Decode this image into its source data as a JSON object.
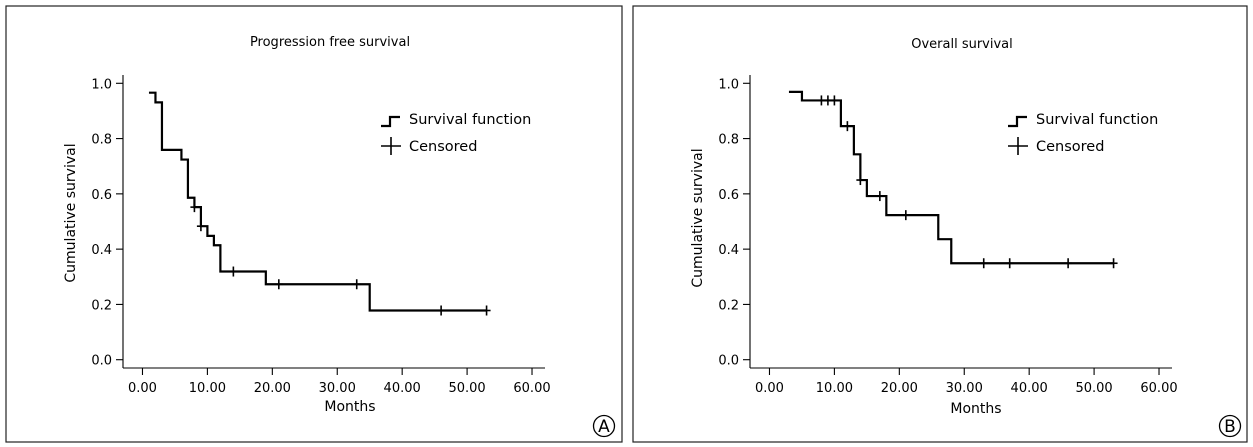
{
  "chart_data": [
    {
      "type": "line",
      "panel": "A",
      "title": "Progression free survival",
      "xlabel": "Months",
      "ylabel": "Cumulative survival",
      "xlim": [
        -3,
        62
      ],
      "ylim": [
        -0.03,
        1.03
      ],
      "xticks": [
        "0.00",
        "10.00",
        "20.00",
        "30.00",
        "40.00",
        "50.00",
        "60.00"
      ],
      "xtick_values": [
        0,
        10,
        20,
        30,
        40,
        50,
        60
      ],
      "yticks": [
        "0.0",
        "0.2",
        "0.4",
        "0.6",
        "0.8",
        "1.0"
      ],
      "ytick_values": [
        0,
        0.2,
        0.4,
        0.6,
        0.8,
        1.0
      ],
      "legend": [
        "Survival function",
        "Censored"
      ],
      "legend_position": "top-right",
      "series": [
        {
          "name": "Survival function",
          "start": [
            1,
            0.966
          ],
          "steps": [
            {
              "x": 2,
              "y": 0.931
            },
            {
              "x": 3,
              "y": 0.759
            },
            {
              "x": 6,
              "y": 0.724
            },
            {
              "x": 7,
              "y": 0.586
            },
            {
              "x": 8,
              "y": 0.552
            },
            {
              "x": 9,
              "y": 0.483
            },
            {
              "x": 10,
              "y": 0.448
            },
            {
              "x": 11,
              "y": 0.414
            },
            {
              "x": 12,
              "y": 0.319
            },
            {
              "x": 19,
              "y": 0.273
            },
            {
              "x": 35,
              "y": 0.178
            }
          ],
          "end_x": 53
        }
      ],
      "censored": [
        {
          "x": 8,
          "y": 0.552
        },
        {
          "x": 9,
          "y": 0.483
        },
        {
          "x": 14,
          "y": 0.319
        },
        {
          "x": 21,
          "y": 0.273
        },
        {
          "x": 33,
          "y": 0.273
        },
        {
          "x": 46,
          "y": 0.178
        },
        {
          "x": 53,
          "y": 0.178
        }
      ]
    },
    {
      "type": "line",
      "panel": "B",
      "title": "Overall survival",
      "xlabel": "Months",
      "ylabel": "Cumulative survival",
      "xlim": [
        -3,
        62
      ],
      "ylim": [
        -0.03,
        1.03
      ],
      "xticks": [
        "0.00",
        "10.00",
        "20.00",
        "30.00",
        "40.00",
        "50.00",
        "60.00"
      ],
      "xtick_values": [
        0,
        10,
        20,
        30,
        40,
        50,
        60
      ],
      "yticks": [
        "0.0",
        "0.2",
        "0.4",
        "0.6",
        "0.8",
        "1.0"
      ],
      "ytick_values": [
        0,
        0.2,
        0.4,
        0.6,
        0.8,
        1.0
      ],
      "legend": [
        "Survival function",
        "Censored"
      ],
      "legend_position": "top-right",
      "series": [
        {
          "name": "Survival function",
          "start": [
            3,
            0.969
          ],
          "steps": [
            {
              "x": 5,
              "y": 0.938
            },
            {
              "x": 11,
              "y": 0.845
            },
            {
              "x": 13,
              "y": 0.743
            },
            {
              "x": 14,
              "y": 0.65
            },
            {
              "x": 15,
              "y": 0.592
            },
            {
              "x": 18,
              "y": 0.523
            },
            {
              "x": 26,
              "y": 0.436
            },
            {
              "x": 28,
              "y": 0.349
            }
          ],
          "end_x": 53
        }
      ],
      "censored": [
        {
          "x": 8,
          "y": 0.938
        },
        {
          "x": 9,
          "y": 0.938
        },
        {
          "x": 10,
          "y": 0.938
        },
        {
          "x": 12,
          "y": 0.845
        },
        {
          "x": 14,
          "y": 0.65
        },
        {
          "x": 17,
          "y": 0.592
        },
        {
          "x": 21,
          "y": 0.523
        },
        {
          "x": 33,
          "y": 0.349
        },
        {
          "x": 37,
          "y": 0.349
        },
        {
          "x": 46,
          "y": 0.349
        },
        {
          "x": 53,
          "y": 0.349
        }
      ]
    }
  ],
  "badges": [
    "A",
    "B"
  ]
}
